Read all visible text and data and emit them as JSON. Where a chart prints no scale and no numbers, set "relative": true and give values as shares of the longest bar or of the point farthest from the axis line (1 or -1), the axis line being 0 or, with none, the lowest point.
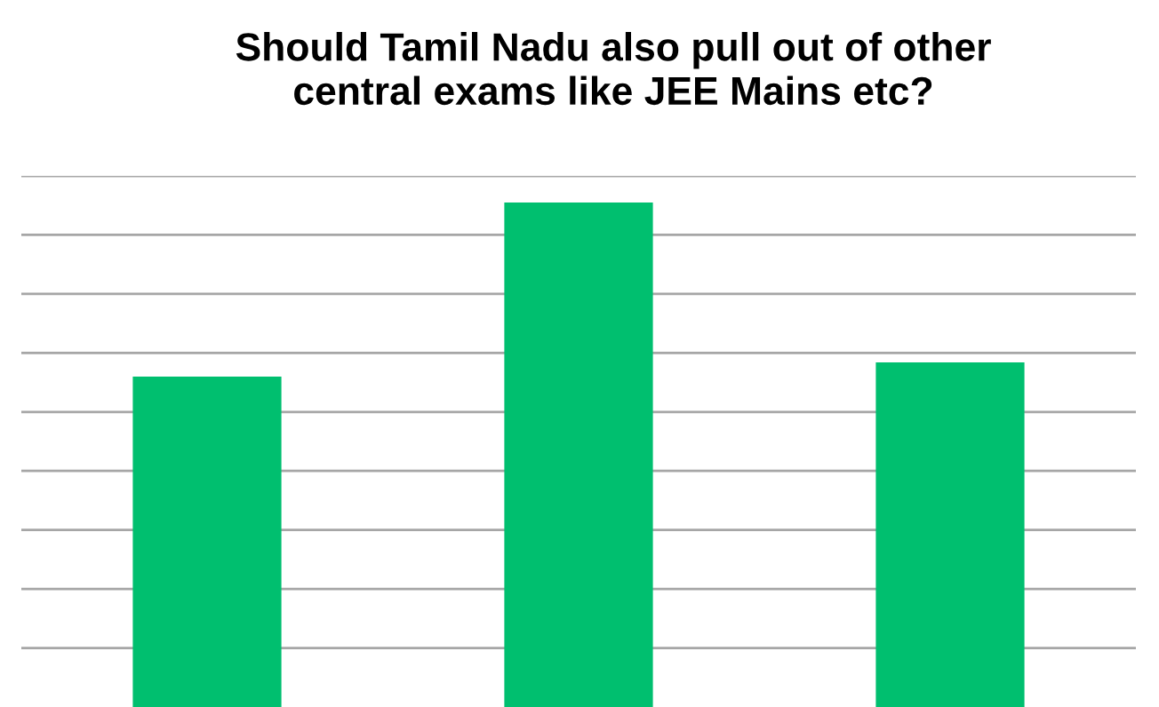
{
  "chart_data": {
    "type": "bar",
    "title": "Should Tamil Nadu also pull out of other\ncentral exams like JEE Mains etc?",
    "categories": [
      null,
      null,
      null
    ],
    "values": [
      0.655,
      1,
      0.683
    ],
    "color": "#00bf6f",
    "relative": true,
    "grid": "y"
  }
}
